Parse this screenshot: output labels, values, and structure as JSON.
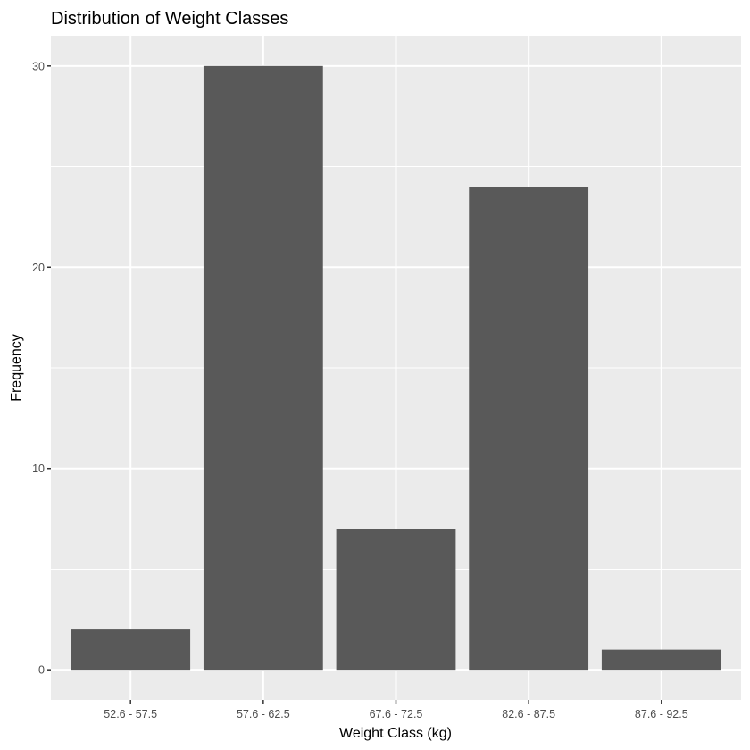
{
  "chart_data": {
    "type": "bar",
    "title": "Distribution of Weight Classes",
    "xlabel": "Weight Class (kg)",
    "ylabel": "Frequency",
    "categories": [
      "52.6 - 57.5",
      "57.6 - 62.5",
      "67.6 - 72.5",
      "82.6 - 87.5",
      "87.6 - 92.5"
    ],
    "values": [
      2,
      30,
      7,
      24,
      1
    ],
    "ylim": [
      -1.5,
      31.5
    ],
    "yticks": [
      0,
      10,
      20,
      30
    ],
    "grid": true,
    "legend": "none",
    "colors": {
      "bar": "#595959",
      "panel": "#ebebeb",
      "grid_major": "#ffffff",
      "grid_minor": "#f5f5f5",
      "tick": "#333333"
    }
  }
}
